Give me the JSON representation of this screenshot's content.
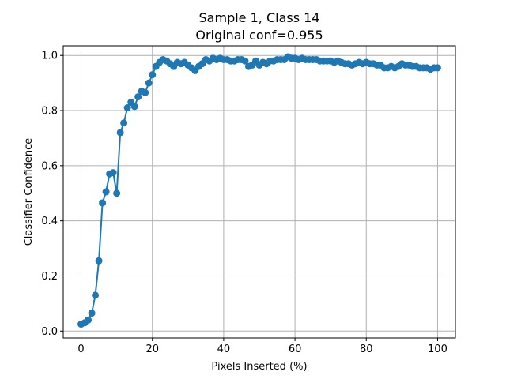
{
  "chart_data": {
    "type": "line",
    "title_lines": [
      "Sample 1, Class 14",
      "Original conf=0.955"
    ],
    "xlabel": "Pixels Inserted (%)",
    "ylabel": "Classifier Confidence",
    "xlim": [
      -5,
      105
    ],
    "ylim": [
      -0.025,
      1.035
    ],
    "xticks": [
      0,
      20,
      40,
      60,
      80,
      100
    ],
    "yticks": [
      0.0,
      0.2,
      0.4,
      0.6,
      0.8,
      1.0
    ],
    "xtick_labels": [
      "0",
      "20",
      "40",
      "60",
      "80",
      "100"
    ],
    "ytick_labels": [
      "0.0",
      "0.2",
      "0.4",
      "0.6",
      "0.8",
      "1.0"
    ],
    "grid": true,
    "color": "#1f77b4",
    "marker": "circle",
    "x": [
      0,
      1,
      2,
      3,
      4,
      5,
      6,
      7,
      8,
      9,
      10,
      11,
      12,
      13,
      14,
      15,
      16,
      17,
      18,
      19,
      20,
      21,
      22,
      23,
      24,
      25,
      26,
      27,
      28,
      29,
      30,
      31,
      32,
      33,
      34,
      35,
      36,
      37,
      38,
      39,
      40,
      41,
      42,
      43,
      44,
      45,
      46,
      47,
      48,
      49,
      50,
      51,
      52,
      53,
      54,
      55,
      56,
      57,
      58,
      59,
      60,
      61,
      62,
      63,
      64,
      65,
      66,
      67,
      68,
      69,
      70,
      71,
      72,
      73,
      74,
      75,
      76,
      77,
      78,
      79,
      80,
      81,
      82,
      83,
      84,
      85,
      86,
      87,
      88,
      89,
      90,
      91,
      92,
      93,
      94,
      95,
      96,
      97,
      98,
      99,
      100
    ],
    "y": [
      0.025,
      0.03,
      0.04,
      0.065,
      0.13,
      0.255,
      0.465,
      0.505,
      0.57,
      0.575,
      0.5,
      0.72,
      0.755,
      0.81,
      0.83,
      0.815,
      0.85,
      0.87,
      0.865,
      0.9,
      0.93,
      0.96,
      0.975,
      0.985,
      0.98,
      0.97,
      0.96,
      0.975,
      0.97,
      0.975,
      0.965,
      0.955,
      0.945,
      0.96,
      0.97,
      0.985,
      0.98,
      0.99,
      0.985,
      0.99,
      0.985,
      0.985,
      0.98,
      0.98,
      0.985,
      0.985,
      0.98,
      0.96,
      0.965,
      0.98,
      0.965,
      0.975,
      0.97,
      0.98,
      0.98,
      0.985,
      0.985,
      0.985,
      0.995,
      0.99,
      0.99,
      0.985,
      0.99,
      0.985,
      0.985,
      0.985,
      0.985,
      0.98,
      0.98,
      0.98,
      0.98,
      0.975,
      0.98,
      0.975,
      0.97,
      0.97,
      0.965,
      0.97,
      0.975,
      0.97,
      0.975,
      0.97,
      0.97,
      0.965,
      0.965,
      0.955,
      0.955,
      0.96,
      0.955,
      0.96,
      0.97,
      0.965,
      0.965,
      0.96,
      0.96,
      0.955,
      0.955,
      0.955,
      0.95,
      0.955,
      0.955
    ]
  }
}
